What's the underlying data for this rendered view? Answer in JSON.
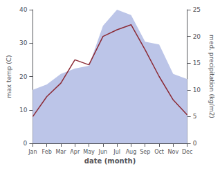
{
  "chart_data": {
    "type": "line",
    "categories": [
      "Jan",
      "Feb",
      "Mar",
      "Apr",
      "May",
      "Jun",
      "Jul",
      "Aug",
      "Sep",
      "Oct",
      "Nov",
      "Dec"
    ],
    "series": [
      {
        "type": "area",
        "axis": "y2",
        "color": "#bcc5e8",
        "values": [
          10.0,
          11.0,
          13.0,
          14.0,
          14.5,
          22.0,
          25.0,
          24.0,
          19.0,
          18.5,
          13.0,
          12.0
        ]
      },
      {
        "type": "line",
        "axis": "y",
        "color": "#8b2a35",
        "values": [
          8.0,
          14.0,
          18.0,
          25.0,
          23.5,
          32.0,
          34.0,
          35.5,
          28.0,
          20.0,
          13.0,
          8.5
        ]
      }
    ],
    "xlabel": "date (month)",
    "ylabel": "max temp (C)",
    "y2label": "med. precipitation (kg/m2)",
    "ylim": [
      0,
      40
    ],
    "yticks": [
      0,
      10,
      20,
      30,
      40
    ],
    "y2lim": [
      0,
      25
    ],
    "y2ticks": [
      0,
      5,
      10,
      15,
      20,
      25
    ],
    "grid": false
  }
}
